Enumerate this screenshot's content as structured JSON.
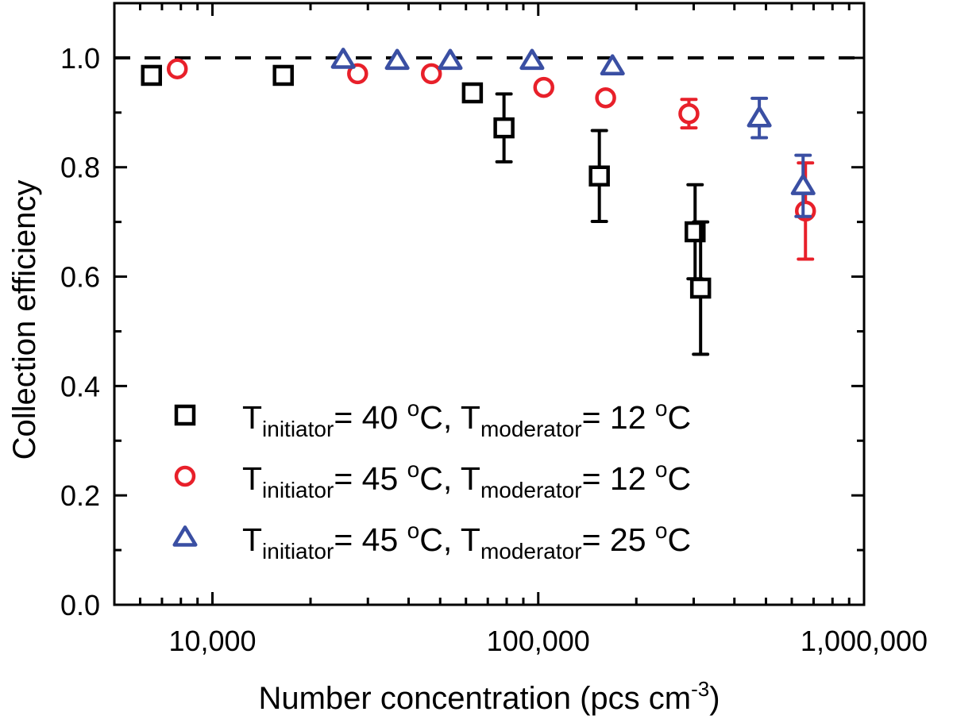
{
  "chart_data": {
    "type": "scatter",
    "title": "",
    "xlabel": "Number concentration (pcs cm",
    "xlabel_superscript": "-3",
    "xlabel_suffix": ")",
    "ylabel": "Collection efficiency",
    "xscale": "log",
    "xlim": [
      5000,
      1000000
    ],
    "ylim": [
      0,
      1.1
    ],
    "x_ticks": [
      10000,
      100000,
      1000000
    ],
    "x_tick_labels": [
      "10,000",
      "100,000",
      "1,000,000"
    ],
    "y_ticks": [
      0.0,
      0.2,
      0.4,
      0.6,
      0.8,
      1.0
    ],
    "y_tick_labels": [
      "0.0",
      "0.2",
      "0.4",
      "0.6",
      "0.8",
      "1.0"
    ],
    "grid": false,
    "reference_line": {
      "y": 1.0,
      "style": "dashed",
      "color": "#000000"
    },
    "legend_position": "bottom-left",
    "series": [
      {
        "name": "T_initiator= 40 °C, T_moderator= 12 °C",
        "legend": {
          "main": "T",
          "sub1": "initiator",
          "mid": "= 40 ",
          "deg": "o",
          "mid2": "C, T",
          "sub2": "moderator",
          "end": "= 12 ",
          "deg2": "o",
          "end2": "C"
        },
        "marker": "square",
        "color": "#000000",
        "points": [
          {
            "x": 6500,
            "y": 0.968,
            "err": 0.005
          },
          {
            "x": 16500,
            "y": 0.968,
            "err": 0.005
          },
          {
            "x": 62800,
            "y": 0.936,
            "err": 0.008
          },
          {
            "x": 78500,
            "y": 0.872,
            "err": 0.062
          },
          {
            "x": 154000,
            "y": 0.784,
            "err": 0.083
          },
          {
            "x": 303000,
            "y": 0.682,
            "err": 0.086
          },
          {
            "x": 315000,
            "y": 0.579,
            "err": 0.121
          }
        ]
      },
      {
        "name": "T_initiator= 45 °C, T_moderator= 12 °C",
        "legend": {
          "main": "T",
          "sub1": "initiator",
          "mid": "= 45 ",
          "deg": "o",
          "mid2": "C, T",
          "sub2": "moderator",
          "end": "= 12 ",
          "deg2": "o",
          "end2": "C"
        },
        "marker": "circle",
        "color": "#e8202a",
        "points": [
          {
            "x": 7800,
            "y": 0.98,
            "err": 0.008
          },
          {
            "x": 27900,
            "y": 0.971,
            "err": 0.008
          },
          {
            "x": 47000,
            "y": 0.971,
            "err": 0.008
          },
          {
            "x": 104000,
            "y": 0.946,
            "err": 0.006
          },
          {
            "x": 161000,
            "y": 0.927,
            "err": 0.005
          },
          {
            "x": 290000,
            "y": 0.898,
            "err": 0.026
          },
          {
            "x": 661000,
            "y": 0.72,
            "err": 0.088
          }
        ]
      },
      {
        "name": "T_initiator= 45 °C, T_moderator= 25 °C",
        "legend": {
          "main": "T",
          "sub1": "initiator",
          "mid": "= 45 ",
          "deg": "o",
          "mid2": "C, T",
          "sub2": "moderator",
          "end": "= 25 ",
          "deg2": "o",
          "end2": "C"
        },
        "marker": "triangle",
        "color": "#3a4fa3",
        "points": [
          {
            "x": 25200,
            "y": 0.997,
            "err": 0.006
          },
          {
            "x": 36900,
            "y": 0.995,
            "err": 0.006
          },
          {
            "x": 53700,
            "y": 0.995,
            "err": 0.006
          },
          {
            "x": 95700,
            "y": 0.995,
            "err": 0.006
          },
          {
            "x": 169000,
            "y": 0.985,
            "err": 0.006
          },
          {
            "x": 477000,
            "y": 0.89,
            "err": 0.036
          },
          {
            "x": 650000,
            "y": 0.766,
            "err": 0.056
          }
        ]
      }
    ]
  }
}
